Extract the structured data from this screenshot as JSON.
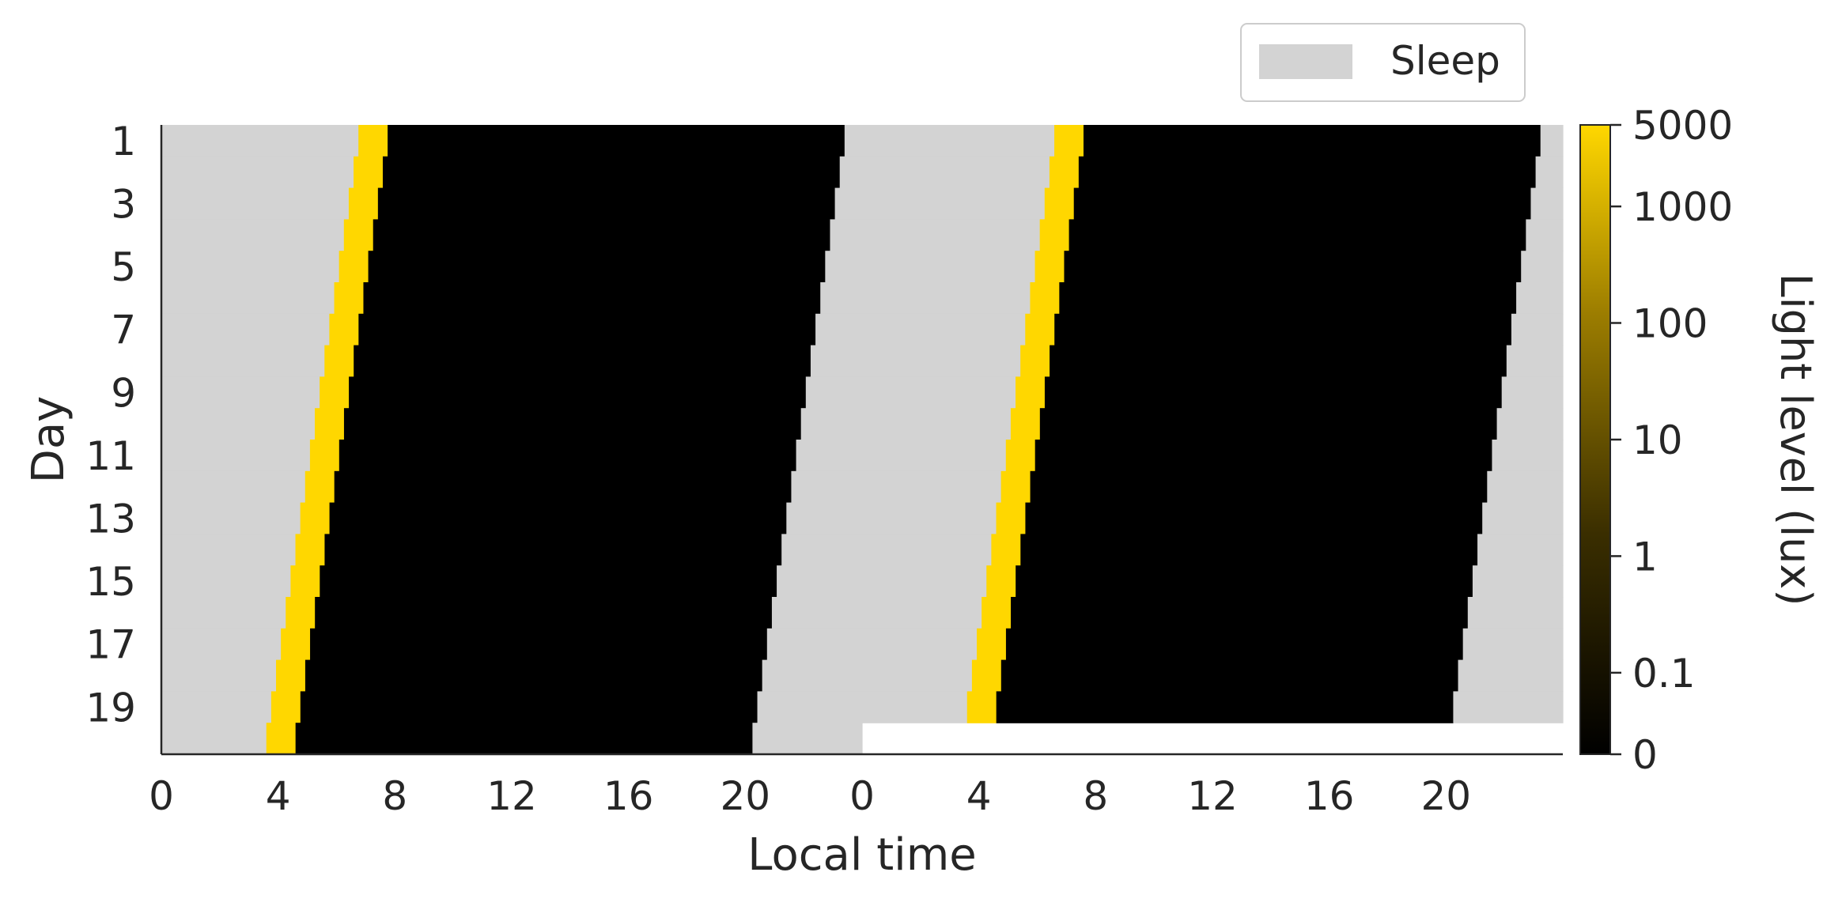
{
  "chart_data": {
    "type": "heatmap",
    "subtype": "double-plotted actogram",
    "xlabel": "Local time",
    "ylabel": "Day",
    "x_ticks": [
      "0",
      "4",
      "8",
      "12",
      "16",
      "20",
      "0",
      "4",
      "8",
      "12",
      "16",
      "20"
    ],
    "x_range_hours": [
      0,
      48
    ],
    "y_ticks": [
      "1",
      "3",
      "5",
      "7",
      "9",
      "11",
      "13",
      "15",
      "17",
      "19"
    ],
    "days": 20,
    "day_length_hours": 24.8,
    "light_pulse": {
      "lux": 5000,
      "duration_hours": 1,
      "start_day1_hours": 6.75,
      "drift_hours_per_day": -0.166
    },
    "dark_lux": 0,
    "sleep": {
      "onset_day1_hours": 23.4,
      "drift_hours_per_day": -0.166,
      "wake_offset_from_pulse_hours": -6.75
    },
    "colorbar": {
      "label": "Light level (lux)",
      "scale": "log",
      "ticks": [
        "5000",
        "1000",
        "100",
        "10",
        "1",
        "0.1",
        "0"
      ],
      "tick_values": [
        5000,
        1000,
        100,
        10,
        1,
        0.1,
        0
      ],
      "color_low": "#000000",
      "color_high": "#FFD700"
    },
    "legend": {
      "position": "top-right",
      "entries": [
        {
          "label": "Sleep",
          "color": "#D3D3D3"
        }
      ]
    },
    "grid": false
  }
}
